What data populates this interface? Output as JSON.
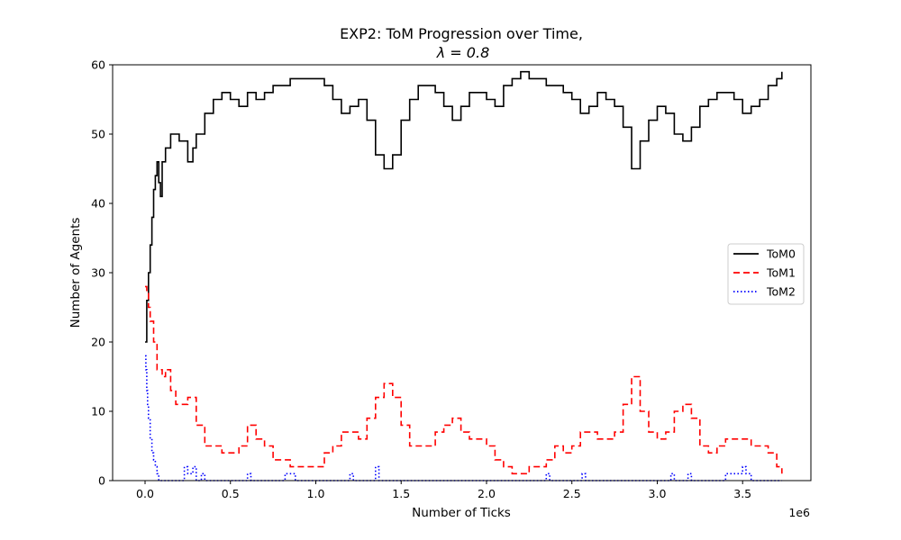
{
  "chart_data": {
    "type": "line",
    "title": "EXP2: ToM Progression over Time,",
    "subtitle": "λ = 0.8",
    "xlabel": "Number of Ticks",
    "ylabel": "Number of Agents",
    "x_offset_label": "1e6",
    "xlim": [
      -0.19,
      3.9
    ],
    "ylim": [
      0,
      60
    ],
    "x_ticks": [
      0.0,
      0.5,
      1.0,
      1.5,
      2.0,
      2.5,
      3.0,
      3.5
    ],
    "x_tick_labels": [
      "0.0",
      "0.5",
      "1.0",
      "1.5",
      "2.0",
      "2.5",
      "3.0",
      "3.5"
    ],
    "y_ticks": [
      0,
      10,
      20,
      30,
      40,
      50,
      60
    ],
    "y_tick_labels": [
      "0",
      "10",
      "20",
      "30",
      "40",
      "50",
      "60"
    ],
    "grid": false,
    "legend_position": "center-right",
    "series": [
      {
        "name": "ToM0",
        "color": "#000000",
        "dash": "solid",
        "points": [
          [
            0.0,
            20
          ],
          [
            0.01,
            26
          ],
          [
            0.02,
            30
          ],
          [
            0.03,
            34
          ],
          [
            0.04,
            38
          ],
          [
            0.05,
            42
          ],
          [
            0.06,
            44
          ],
          [
            0.07,
            46
          ],
          [
            0.08,
            43
          ],
          [
            0.09,
            41
          ],
          [
            0.1,
            46
          ],
          [
            0.12,
            48
          ],
          [
            0.15,
            50
          ],
          [
            0.2,
            49
          ],
          [
            0.25,
            46
          ],
          [
            0.28,
            48
          ],
          [
            0.3,
            50
          ],
          [
            0.35,
            53
          ],
          [
            0.4,
            55
          ],
          [
            0.45,
            56
          ],
          [
            0.5,
            55
          ],
          [
            0.55,
            54
          ],
          [
            0.6,
            56
          ],
          [
            0.65,
            55
          ],
          [
            0.7,
            56
          ],
          [
            0.75,
            57
          ],
          [
            0.8,
            57
          ],
          [
            0.85,
            58
          ],
          [
            0.9,
            58
          ],
          [
            1.0,
            58
          ],
          [
            1.05,
            57
          ],
          [
            1.1,
            55
          ],
          [
            1.15,
            53
          ],
          [
            1.2,
            54
          ],
          [
            1.25,
            55
          ],
          [
            1.3,
            52
          ],
          [
            1.35,
            47
          ],
          [
            1.4,
            45
          ],
          [
            1.45,
            47
          ],
          [
            1.5,
            52
          ],
          [
            1.55,
            55
          ],
          [
            1.6,
            57
          ],
          [
            1.65,
            57
          ],
          [
            1.7,
            56
          ],
          [
            1.75,
            54
          ],
          [
            1.8,
            52
          ],
          [
            1.85,
            54
          ],
          [
            1.9,
            56
          ],
          [
            1.95,
            56
          ],
          [
            2.0,
            55
          ],
          [
            2.05,
            54
          ],
          [
            2.1,
            57
          ],
          [
            2.15,
            58
          ],
          [
            2.2,
            59
          ],
          [
            2.25,
            58
          ],
          [
            2.3,
            58
          ],
          [
            2.35,
            57
          ],
          [
            2.4,
            57
          ],
          [
            2.45,
            56
          ],
          [
            2.5,
            55
          ],
          [
            2.55,
            53
          ],
          [
            2.6,
            54
          ],
          [
            2.65,
            56
          ],
          [
            2.7,
            55
          ],
          [
            2.75,
            54
          ],
          [
            2.8,
            51
          ],
          [
            2.85,
            45
          ],
          [
            2.9,
            49
          ],
          [
            2.95,
            52
          ],
          [
            3.0,
            54
          ],
          [
            3.05,
            53
          ],
          [
            3.1,
            50
          ],
          [
            3.15,
            49
          ],
          [
            3.2,
            51
          ],
          [
            3.25,
            54
          ],
          [
            3.3,
            55
          ],
          [
            3.35,
            56
          ],
          [
            3.4,
            56
          ],
          [
            3.45,
            55
          ],
          [
            3.5,
            53
          ],
          [
            3.55,
            54
          ],
          [
            3.6,
            55
          ],
          [
            3.65,
            57
          ],
          [
            3.7,
            58
          ],
          [
            3.73,
            59
          ]
        ]
      },
      {
        "name": "ToM1",
        "color": "#ff0000",
        "dash": "dashed",
        "points": [
          [
            0.0,
            28
          ],
          [
            0.01,
            27
          ],
          [
            0.02,
            25
          ],
          [
            0.03,
            23
          ],
          [
            0.05,
            20
          ],
          [
            0.07,
            16
          ],
          [
            0.1,
            15
          ],
          [
            0.12,
            16
          ],
          [
            0.15,
            13
          ],
          [
            0.18,
            11
          ],
          [
            0.2,
            11
          ],
          [
            0.25,
            12
          ],
          [
            0.3,
            8
          ],
          [
            0.35,
            5
          ],
          [
            0.4,
            5
          ],
          [
            0.45,
            4
          ],
          [
            0.5,
            4
          ],
          [
            0.55,
            5
          ],
          [
            0.6,
            8
          ],
          [
            0.65,
            6
          ],
          [
            0.7,
            5
          ],
          [
            0.75,
            3
          ],
          [
            0.8,
            3
          ],
          [
            0.85,
            2
          ],
          [
            0.9,
            2
          ],
          [
            1.0,
            2
          ],
          [
            1.05,
            4
          ],
          [
            1.1,
            5
          ],
          [
            1.15,
            7
          ],
          [
            1.2,
            7
          ],
          [
            1.25,
            6
          ],
          [
            1.3,
            9
          ],
          [
            1.35,
            12
          ],
          [
            1.4,
            14
          ],
          [
            1.45,
            12
          ],
          [
            1.5,
            8
          ],
          [
            1.55,
            5
          ],
          [
            1.6,
            5
          ],
          [
            1.65,
            5
          ],
          [
            1.7,
            7
          ],
          [
            1.75,
            8
          ],
          [
            1.8,
            9
          ],
          [
            1.85,
            7
          ],
          [
            1.9,
            6
          ],
          [
            1.95,
            6
          ],
          [
            2.0,
            5
          ],
          [
            2.05,
            3
          ],
          [
            2.1,
            2
          ],
          [
            2.15,
            1
          ],
          [
            2.2,
            1
          ],
          [
            2.25,
            2
          ],
          [
            2.3,
            2
          ],
          [
            2.35,
            3
          ],
          [
            2.4,
            5
          ],
          [
            2.45,
            4
          ],
          [
            2.5,
            5
          ],
          [
            2.55,
            7
          ],
          [
            2.6,
            7
          ],
          [
            2.65,
            6
          ],
          [
            2.7,
            6
          ],
          [
            2.75,
            7
          ],
          [
            2.8,
            11
          ],
          [
            2.85,
            15
          ],
          [
            2.9,
            10
          ],
          [
            2.95,
            7
          ],
          [
            3.0,
            6
          ],
          [
            3.05,
            7
          ],
          [
            3.1,
            10
          ],
          [
            3.15,
            11
          ],
          [
            3.2,
            9
          ],
          [
            3.25,
            5
          ],
          [
            3.3,
            4
          ],
          [
            3.35,
            5
          ],
          [
            3.4,
            6
          ],
          [
            3.45,
            6
          ],
          [
            3.5,
            6
          ],
          [
            3.55,
            5
          ],
          [
            3.6,
            5
          ],
          [
            3.65,
            4
          ],
          [
            3.7,
            2
          ],
          [
            3.73,
            1
          ]
        ]
      },
      {
        "name": "ToM2",
        "color": "#0000ff",
        "dash": "dotted",
        "points": [
          [
            0.0,
            18
          ],
          [
            0.005,
            16
          ],
          [
            0.01,
            13
          ],
          [
            0.015,
            11
          ],
          [
            0.02,
            9
          ],
          [
            0.03,
            6
          ],
          [
            0.04,
            4
          ],
          [
            0.05,
            3
          ],
          [
            0.06,
            2
          ],
          [
            0.07,
            1
          ],
          [
            0.08,
            0
          ],
          [
            0.2,
            0
          ],
          [
            0.23,
            2
          ],
          [
            0.25,
            1
          ],
          [
            0.28,
            2
          ],
          [
            0.3,
            0
          ],
          [
            0.33,
            1
          ],
          [
            0.35,
            0
          ],
          [
            0.45,
            0
          ],
          [
            0.6,
            1
          ],
          [
            0.62,
            0
          ],
          [
            0.8,
            0
          ],
          [
            0.82,
            1
          ],
          [
            0.86,
            1
          ],
          [
            0.88,
            0
          ],
          [
            1.2,
            1
          ],
          [
            1.22,
            0
          ],
          [
            1.35,
            2
          ],
          [
            1.37,
            0
          ],
          [
            2.35,
            1
          ],
          [
            2.37,
            0
          ],
          [
            2.56,
            1
          ],
          [
            2.58,
            0
          ],
          [
            3.08,
            1
          ],
          [
            3.1,
            0
          ],
          [
            3.18,
            1
          ],
          [
            3.2,
            0
          ],
          [
            3.4,
            1
          ],
          [
            3.45,
            1
          ],
          [
            3.5,
            2
          ],
          [
            3.52,
            1
          ],
          [
            3.55,
            0
          ],
          [
            3.73,
            0
          ]
        ]
      }
    ]
  }
}
